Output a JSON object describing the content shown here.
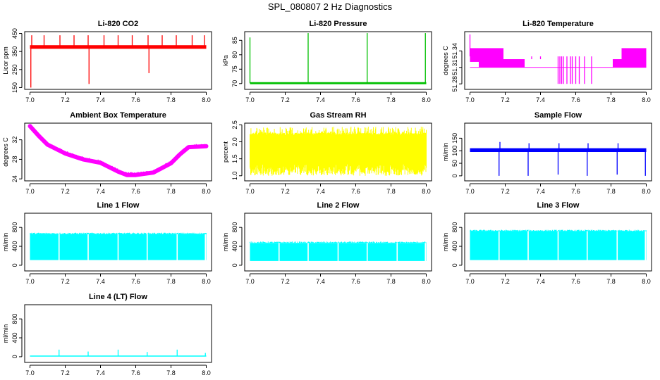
{
  "figure": {
    "title": "SPL_080807  2 Hz Diagnostics"
  },
  "chart_data": [
    {
      "type": "line",
      "title": "Li-820 CO2",
      "ylabel": "Licor ppm",
      "color": "#ff0000",
      "xlim": [
        6.97,
        8.03
      ],
      "ylim": [
        140,
        460
      ],
      "xticks": [
        7.0,
        7.2,
        7.4,
        7.6,
        7.8,
        8.0
      ],
      "xtick_labels": [
        "7.0",
        "7.2",
        "7.4",
        "7.6",
        "7.8",
        "8.0"
      ],
      "yticks": [
        150,
        250,
        350,
        450
      ],
      "ytick_labels": [
        "150",
        "250",
        "350",
        "450"
      ],
      "band": {
        "low": 365,
        "high": 385
      },
      "series": [
        {
          "name": "CO2",
          "x": [
            7.0,
            7.05,
            7.1,
            7.2,
            7.3,
            7.4,
            7.5,
            7.6,
            7.7,
            7.8,
            7.9,
            8.0
          ],
          "y": [
            375,
            378,
            376,
            374,
            375,
            376,
            375,
            374,
            375,
            376,
            375,
            374
          ]
        }
      ],
      "spikes": [
        {
          "x": 7.005,
          "y": 150
        },
        {
          "x": 7.01,
          "y": 440
        },
        {
          "x": 7.08,
          "y": 440
        },
        {
          "x": 7.17,
          "y": 440
        },
        {
          "x": 7.25,
          "y": 440
        },
        {
          "x": 7.33,
          "y": 440
        },
        {
          "x": 7.335,
          "y": 170
        },
        {
          "x": 7.42,
          "y": 440
        },
        {
          "x": 7.5,
          "y": 440
        },
        {
          "x": 7.58,
          "y": 440
        },
        {
          "x": 7.67,
          "y": 440
        },
        {
          "x": 7.675,
          "y": 230
        },
        {
          "x": 7.75,
          "y": 440
        },
        {
          "x": 7.83,
          "y": 440
        },
        {
          "x": 7.92,
          "y": 440
        },
        {
          "x": 7.99,
          "y": 440
        }
      ]
    },
    {
      "type": "line",
      "title": "Li-820 Pressure",
      "ylabel": "kPa",
      "color": "#00c000",
      "xlim": [
        6.97,
        8.03
      ],
      "ylim": [
        68,
        88
      ],
      "xticks": [
        7.0,
        7.2,
        7.4,
        7.6,
        7.8,
        8.0
      ],
      "xtick_labels": [
        "7.0",
        "7.2",
        "7.4",
        "7.6",
        "7.8",
        "8.0"
      ],
      "yticks": [
        70,
        75,
        80,
        85
      ],
      "ytick_labels": [
        "70",
        "75",
        "80",
        "85"
      ],
      "band": {
        "low": 69.8,
        "high": 70.5
      },
      "series": [
        {
          "name": "Pressure",
          "x": [
            7.0,
            7.2,
            7.4,
            7.6,
            7.8,
            8.0
          ],
          "y": [
            70.3,
            70.1,
            70.1,
            70.0,
            70.0,
            70.0
          ]
        }
      ],
      "spikes": [
        {
          "x": 7.0,
          "y": 86
        },
        {
          "x": 7.33,
          "y": 87.5
        },
        {
          "x": 7.665,
          "y": 87.5
        },
        {
          "x": 7.995,
          "y": 87.5
        }
      ]
    },
    {
      "type": "line",
      "title": "Li-820 Temperature",
      "ylabel": "degrees C",
      "color": "#ff00ff",
      "xlim": [
        6.97,
        8.03
      ],
      "ylim": [
        51.27,
        51.375
      ],
      "xticks": [
        7.0,
        7.2,
        7.4,
        7.6,
        7.8,
        8.0
      ],
      "xtick_labels": [
        "7.0",
        "7.2",
        "7.4",
        "7.6",
        "7.8",
        "8.0"
      ],
      "yticks": [
        51.28,
        51.31,
        51.34
      ],
      "ytick_labels": [
        "51.28",
        "51.31",
        "51.34"
      ],
      "blocks": [
        {
          "x0": 7.0,
          "x1": 7.05,
          "low": 51.32,
          "high": 51.345
        },
        {
          "x0": 7.05,
          "x1": 7.19,
          "low": 51.31,
          "high": 51.345
        },
        {
          "x0": 7.19,
          "x1": 7.31,
          "low": 51.31,
          "high": 51.325
        },
        {
          "x0": 7.81,
          "x1": 7.86,
          "low": 51.31,
          "high": 51.325
        },
        {
          "x0": 7.86,
          "x1": 8.0,
          "low": 51.31,
          "high": 51.345
        }
      ],
      "series": [
        {
          "name": "Temperature",
          "x": [
            7.0,
            7.05,
            7.3,
            7.6,
            7.8,
            8.0
          ],
          "y": [
            51.33,
            51.32,
            51.31,
            51.31,
            51.31,
            51.32
          ]
        }
      ],
      "spikes": [
        {
          "x": 7.0,
          "y": 51.37
        },
        {
          "x": 7.5,
          "y": 51.28
        },
        {
          "x": 7.51,
          "y": 51.28
        },
        {
          "x": 7.52,
          "y": 51.28
        },
        {
          "x": 7.53,
          "y": 51.28
        },
        {
          "x": 7.55,
          "y": 51.28
        },
        {
          "x": 7.57,
          "y": 51.28
        },
        {
          "x": 7.58,
          "y": 51.28
        },
        {
          "x": 7.6,
          "y": 51.28
        },
        {
          "x": 7.62,
          "y": 51.28
        },
        {
          "x": 7.65,
          "y": 51.28
        },
        {
          "x": 7.69,
          "y": 51.28
        },
        {
          "x": 7.35,
          "y": 51.325
        },
        {
          "x": 7.4,
          "y": 51.325
        }
      ]
    },
    {
      "type": "line",
      "title": "Ambient Box Temperature",
      "ylabel": "degrees C",
      "color": "#ff00ff",
      "xlim": [
        6.97,
        8.03
      ],
      "ylim": [
        23.6,
        35.4
      ],
      "xticks": [
        7.0,
        7.2,
        7.4,
        7.6,
        7.8,
        8.0
      ],
      "xtick_labels": [
        "7.0",
        "7.2",
        "7.4",
        "7.6",
        "7.8",
        "8.0"
      ],
      "yticks": [
        24,
        28,
        32
      ],
      "ytick_labels": [
        "24",
        "28",
        "32"
      ],
      "thickness": 0.6,
      "series": [
        {
          "name": "Ambient",
          "x": [
            7.0,
            7.05,
            7.1,
            7.2,
            7.3,
            7.4,
            7.5,
            7.55,
            7.6,
            7.7,
            7.8,
            7.85,
            7.9,
            8.0
          ],
          "y": [
            34.8,
            32.8,
            31.0,
            29.2,
            28.0,
            27.3,
            25.5,
            24.8,
            24.8,
            25.3,
            27.2,
            29.0,
            30.5,
            30.7
          ]
        }
      ]
    },
    {
      "type": "area",
      "title": "Gas Stream RH",
      "ylabel": "percent",
      "color": "#ffff00",
      "xlim": [
        6.97,
        8.03
      ],
      "ylim": [
        0.85,
        2.55
      ],
      "xticks": [
        7.0,
        7.2,
        7.4,
        7.6,
        7.8,
        8.0
      ],
      "xtick_labels": [
        "7.0",
        "7.2",
        "7.4",
        "7.6",
        "7.8",
        "8.0"
      ],
      "yticks": [
        1.0,
        1.5,
        2.0,
        2.5
      ],
      "ytick_labels": [
        "1.0",
        "1.5",
        "2.0",
        "2.5"
      ],
      "band": {
        "low": 1.35,
        "high": 2.2
      },
      "noise": {
        "low": 1.0,
        "high": 2.45
      }
    },
    {
      "type": "line",
      "title": "Sample Flow",
      "ylabel": "ml/min",
      "color": "#0000ff",
      "xlim": [
        6.97,
        8.03
      ],
      "ylim": [
        -20,
        210
      ],
      "xticks": [
        7.0,
        7.2,
        7.4,
        7.6,
        7.8,
        8.0
      ],
      "xtick_labels": [
        "7.0",
        "7.2",
        "7.4",
        "7.6",
        "7.8",
        "8.0"
      ],
      "yticks": [
        0,
        50,
        100,
        150
      ],
      "ytick_labels": [
        "0",
        "50",
        "100",
        "150"
      ],
      "band": {
        "low": 95,
        "high": 110
      },
      "series": [
        {
          "name": "Sample",
          "x": [
            7.0,
            7.2,
            7.4,
            7.6,
            7.8,
            8.0
          ],
          "y": [
            103,
            102,
            103,
            102,
            103,
            102
          ]
        }
      ],
      "spikes": [
        {
          "x": 7.165,
          "y": 0
        },
        {
          "x": 7.33,
          "y": 0
        },
        {
          "x": 7.5,
          "y": 5
        },
        {
          "x": 7.665,
          "y": 0
        },
        {
          "x": 7.835,
          "y": 5
        },
        {
          "x": 7.995,
          "y": 0
        },
        {
          "x": 7.17,
          "y": 135
        },
        {
          "x": 7.335,
          "y": 130
        },
        {
          "x": 7.505,
          "y": 130
        },
        {
          "x": 7.67,
          "y": 130
        },
        {
          "x": 7.84,
          "y": 130
        }
      ]
    },
    {
      "type": "area",
      "title": "Line 1 Flow",
      "ylabel": "ml/min",
      "color": "#00ffff",
      "xlim": [
        6.97,
        8.03
      ],
      "ylim": [
        -120,
        1100
      ],
      "xticks": [
        7.0,
        7.2,
        7.4,
        7.6,
        7.8,
        8.0
      ],
      "xtick_labels": [
        "7.0",
        "7.2",
        "7.4",
        "7.6",
        "7.8",
        "8.0"
      ],
      "yticks": [
        0,
        400,
        800
      ],
      "ytick_labels": [
        "0",
        "400",
        "800"
      ],
      "band": {
        "low": 110,
        "high": 660
      },
      "gaps": [
        7.165,
        7.33,
        7.5,
        7.665,
        7.835,
        7.995
      ]
    },
    {
      "type": "area",
      "title": "Line 2 Flow",
      "ylabel": "ml/min",
      "color": "#00ffff",
      "xlim": [
        6.97,
        8.03
      ],
      "ylim": [
        -120,
        1100
      ],
      "xticks": [
        7.0,
        7.2,
        7.4,
        7.6,
        7.8,
        8.0
      ],
      "xtick_labels": [
        "7.0",
        "7.2",
        "7.4",
        "7.6",
        "7.8",
        "8.0"
      ],
      "yticks": [
        0,
        400,
        800
      ],
      "ytick_labels": [
        "0",
        "400",
        "800"
      ],
      "band": {
        "low": 90,
        "high": 470
      },
      "gaps": [
        7.165,
        7.33,
        7.5,
        7.665,
        7.835,
        7.995
      ]
    },
    {
      "type": "area",
      "title": "Line 3 Flow",
      "ylabel": "ml/min",
      "color": "#00ffff",
      "xlim": [
        6.97,
        8.03
      ],
      "ylim": [
        -120,
        1100
      ],
      "xticks": [
        7.0,
        7.2,
        7.4,
        7.6,
        7.8,
        8.0
      ],
      "xtick_labels": [
        "7.0",
        "7.2",
        "7.4",
        "7.6",
        "7.8",
        "8.0"
      ],
      "yticks": [
        0,
        400,
        800
      ],
      "ytick_labels": [
        "0",
        "400",
        "800"
      ],
      "band": {
        "low": 110,
        "high": 720
      },
      "gaps": [
        7.165,
        7.33,
        7.5,
        7.665,
        7.835,
        7.995
      ]
    },
    {
      "type": "line",
      "title": "Line 4 (LT) Flow",
      "ylabel": "ml/min",
      "color": "#00ffff",
      "xlim": [
        6.97,
        8.03
      ],
      "ylim": [
        -120,
        1100
      ],
      "xticks": [
        7.0,
        7.2,
        7.4,
        7.6,
        7.8,
        8.0
      ],
      "xtick_labels": [
        "7.0",
        "7.2",
        "7.4",
        "7.6",
        "7.8",
        "8.0"
      ],
      "yticks": [
        0,
        400,
        800
      ],
      "ytick_labels": [
        "0",
        "400",
        "800"
      ],
      "band": {
        "low": 5,
        "high": 25
      },
      "series": [
        {
          "name": "Line4",
          "x": [
            7.0,
            7.2,
            7.4,
            7.6,
            7.8,
            8.0
          ],
          "y": [
            15,
            15,
            15,
            15,
            15,
            15
          ]
        }
      ],
      "spikes": [
        {
          "x": 7.165,
          "y": 150
        },
        {
          "x": 7.33,
          "y": 110
        },
        {
          "x": 7.5,
          "y": 150
        },
        {
          "x": 7.665,
          "y": 100
        },
        {
          "x": 7.835,
          "y": 150
        },
        {
          "x": 7.995,
          "y": 80
        }
      ]
    }
  ]
}
